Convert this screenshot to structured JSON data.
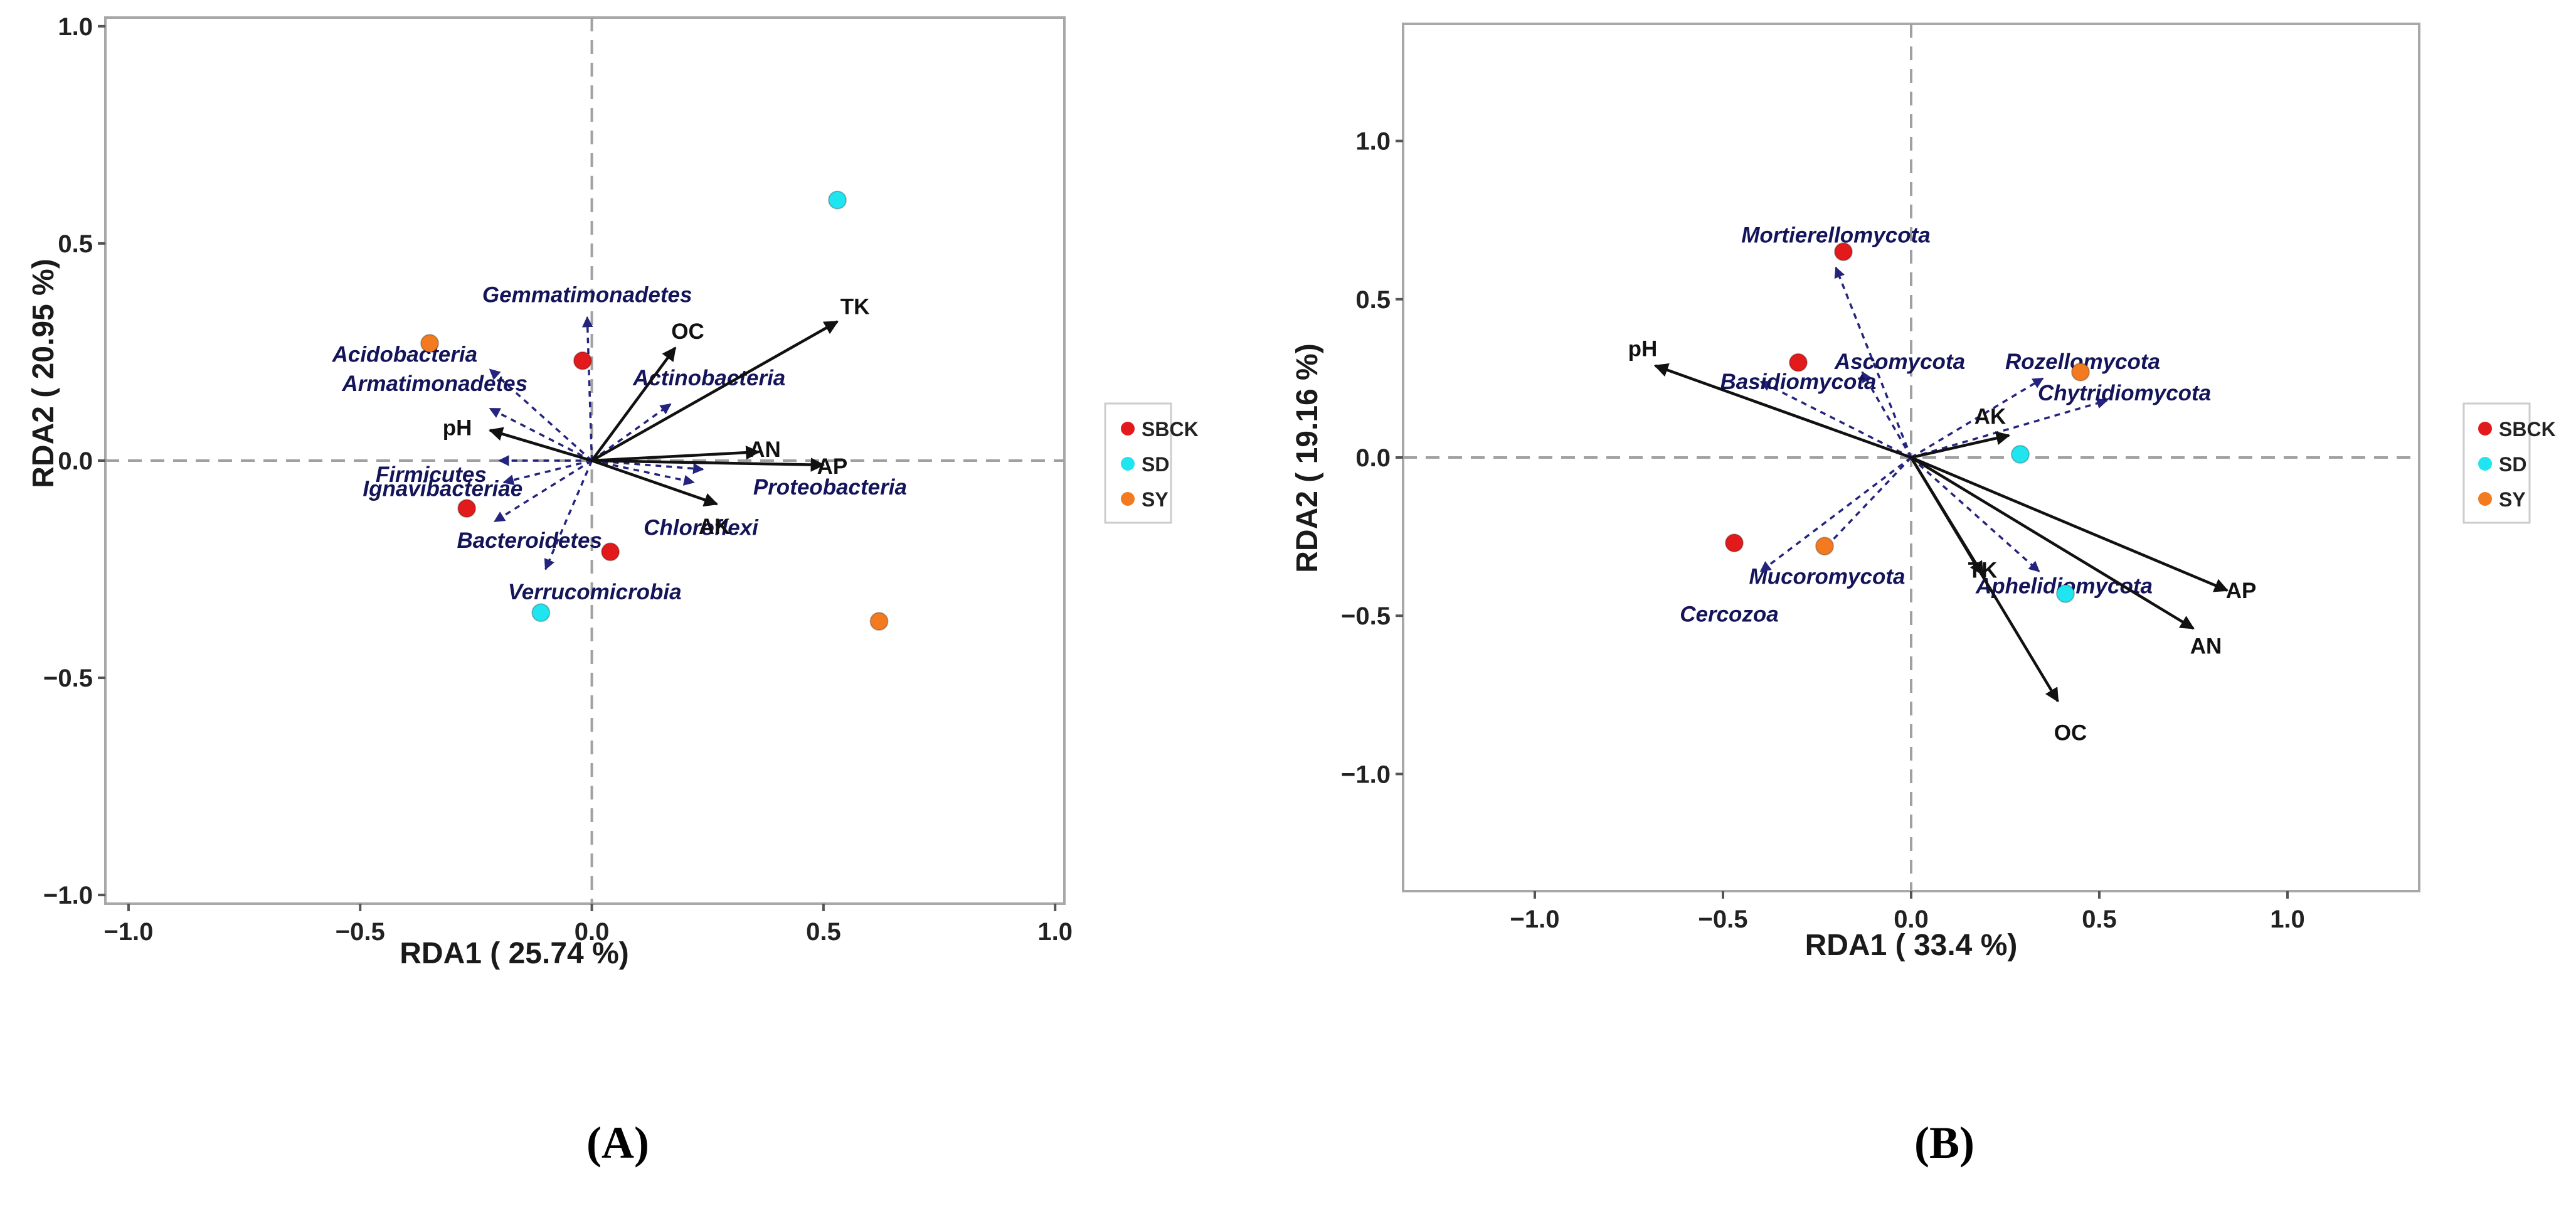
{
  "colors": {
    "SBCK": "#e31a1c",
    "SD": "#1fe5f0",
    "SY": "#f47a1f",
    "env_arrow": "#111111",
    "taxon_arrow": "#24247e"
  },
  "chart_data": [
    {
      "type": "scatter",
      "panel": "A",
      "caption": "(A)",
      "xlabel": "RDA1 ( 25.74 %)",
      "ylabel": "RDA2 ( 20.95 %)",
      "xlim": [
        -1.05,
        1.02
      ],
      "ylim": [
        -1.02,
        1.02
      ],
      "xticks": [
        -1.0,
        -0.5,
        0.0,
        0.5,
        1.0
      ],
      "xtick_labels": [
        "−1.0",
        "−0.5",
        "0.0",
        "0.5",
        "1.0"
      ],
      "yticks": [
        -1.0,
        -0.5,
        0.0,
        0.5,
        1.0
      ],
      "ytick_labels": [
        "−1.0",
        "−0.5",
        "0.0",
        "0.5",
        "1.0"
      ],
      "grid": false,
      "legend": {
        "position": "right",
        "entries": [
          "SBCK",
          "SD",
          "SY"
        ]
      },
      "samples": [
        {
          "group": "SBCK",
          "x": -0.02,
          "y": 0.23
        },
        {
          "group": "SBCK",
          "x": -0.27,
          "y": -0.11
        },
        {
          "group": "SBCK",
          "x": 0.04,
          "y": -0.21
        },
        {
          "group": "SD",
          "x": 0.53,
          "y": 0.6
        },
        {
          "group": "SD",
          "x": -0.11,
          "y": -0.35
        },
        {
          "group": "SY",
          "x": -0.35,
          "y": 0.27
        },
        {
          "group": "SY",
          "x": 0.62,
          "y": -0.37
        }
      ],
      "env_vectors": [
        {
          "label": "TK",
          "x": 0.53,
          "y": 0.32
        },
        {
          "label": "OC",
          "x": 0.18,
          "y": 0.26
        },
        {
          "label": "AN",
          "x": 0.36,
          "y": 0.02
        },
        {
          "label": "AP",
          "x": 0.5,
          "y": -0.01
        },
        {
          "label": "AK",
          "x": 0.27,
          "y": -0.1
        },
        {
          "label": "pH",
          "x": -0.22,
          "y": 0.07
        }
      ],
      "taxon_vectors": [
        {
          "label": "Gemmatimonadetes",
          "x": -0.01,
          "y": 0.33
        },
        {
          "label": "Acidobacteria",
          "x": -0.22,
          "y": 0.21
        },
        {
          "label": "Armatimonadetes",
          "x": -0.22,
          "y": 0.12
        },
        {
          "label": "Actinobacteria",
          "x": 0.17,
          "y": 0.13
        },
        {
          "label": "Firmicutes",
          "x": -0.2,
          "y": 0.0
        },
        {
          "label": "Ignavibacteriae",
          "x": -0.19,
          "y": -0.05
        },
        {
          "label": "Bacteroidetes",
          "x": -0.21,
          "y": -0.14
        },
        {
          "label": "Proteobacteria",
          "x": 0.24,
          "y": -0.02
        },
        {
          "label": "Chloroflexi",
          "x": 0.22,
          "y": -0.05
        },
        {
          "label": "Verrucomicrobia",
          "x": -0.1,
          "y": -0.25
        }
      ]
    },
    {
      "type": "scatter",
      "panel": "B",
      "caption": "(B)",
      "xlabel": "RDA1 ( 33.4 %)",
      "ylabel": "RDA2 ( 19.16 %)",
      "xlim": [
        -1.35,
        1.35
      ],
      "ylim": [
        -1.37,
        1.37
      ],
      "xticks": [
        -1.0,
        -0.5,
        0.0,
        0.5,
        1.0
      ],
      "xtick_labels": [
        "−1.0",
        "−0.5",
        "0.0",
        "0.5",
        "1.0"
      ],
      "yticks": [
        -1.0,
        -0.5,
        0.0,
        0.5,
        1.0
      ],
      "ytick_labels": [
        "−1.0",
        "−0.5",
        "0.0",
        "0.5",
        "1.0"
      ],
      "grid": false,
      "legend": {
        "position": "right",
        "entries": [
          "SBCK",
          "SD",
          "SY"
        ]
      },
      "samples": [
        {
          "group": "SBCK",
          "x": -0.18,
          "y": 0.65
        },
        {
          "group": "SBCK",
          "x": -0.3,
          "y": 0.3
        },
        {
          "group": "SBCK",
          "x": -0.47,
          "y": -0.27
        },
        {
          "group": "SD",
          "x": 0.29,
          "y": 0.01
        },
        {
          "group": "SD",
          "x": 0.41,
          "y": -0.43
        },
        {
          "group": "SY",
          "x": 0.45,
          "y": 0.27
        },
        {
          "group": "SY",
          "x": -0.23,
          "y": -0.28
        }
      ],
      "env_vectors": [
        {
          "label": "pH",
          "x": -0.68,
          "y": 0.29
        },
        {
          "label": "AK",
          "x": 0.26,
          "y": 0.07
        },
        {
          "label": "AP",
          "x": 0.84,
          "y": -0.42
        },
        {
          "label": "AN",
          "x": 0.75,
          "y": -0.54
        },
        {
          "label": "OC",
          "x": 0.39,
          "y": -0.77
        },
        {
          "label": "TK",
          "x": 0.19,
          "y": -0.37
        }
      ],
      "taxon_vectors": [
        {
          "label": "Mortierellomycota",
          "x": -0.2,
          "y": 0.6
        },
        {
          "label": "Ascomycota",
          "x": -0.13,
          "y": 0.27
        },
        {
          "label": "Basidiomycota",
          "x": -0.4,
          "y": 0.24
        },
        {
          "label": "Rozellomycota",
          "x": 0.35,
          "y": 0.25
        },
        {
          "label": "Chytridiomycota",
          "x": 0.52,
          "y": 0.18
        },
        {
          "label": "Mucoromycota",
          "x": -0.24,
          "y": -0.3
        },
        {
          "label": "Cercozoa",
          "x": -0.4,
          "y": -0.36
        },
        {
          "label": "Aphelidiomycota",
          "x": 0.34,
          "y": -0.36
        }
      ]
    }
  ]
}
